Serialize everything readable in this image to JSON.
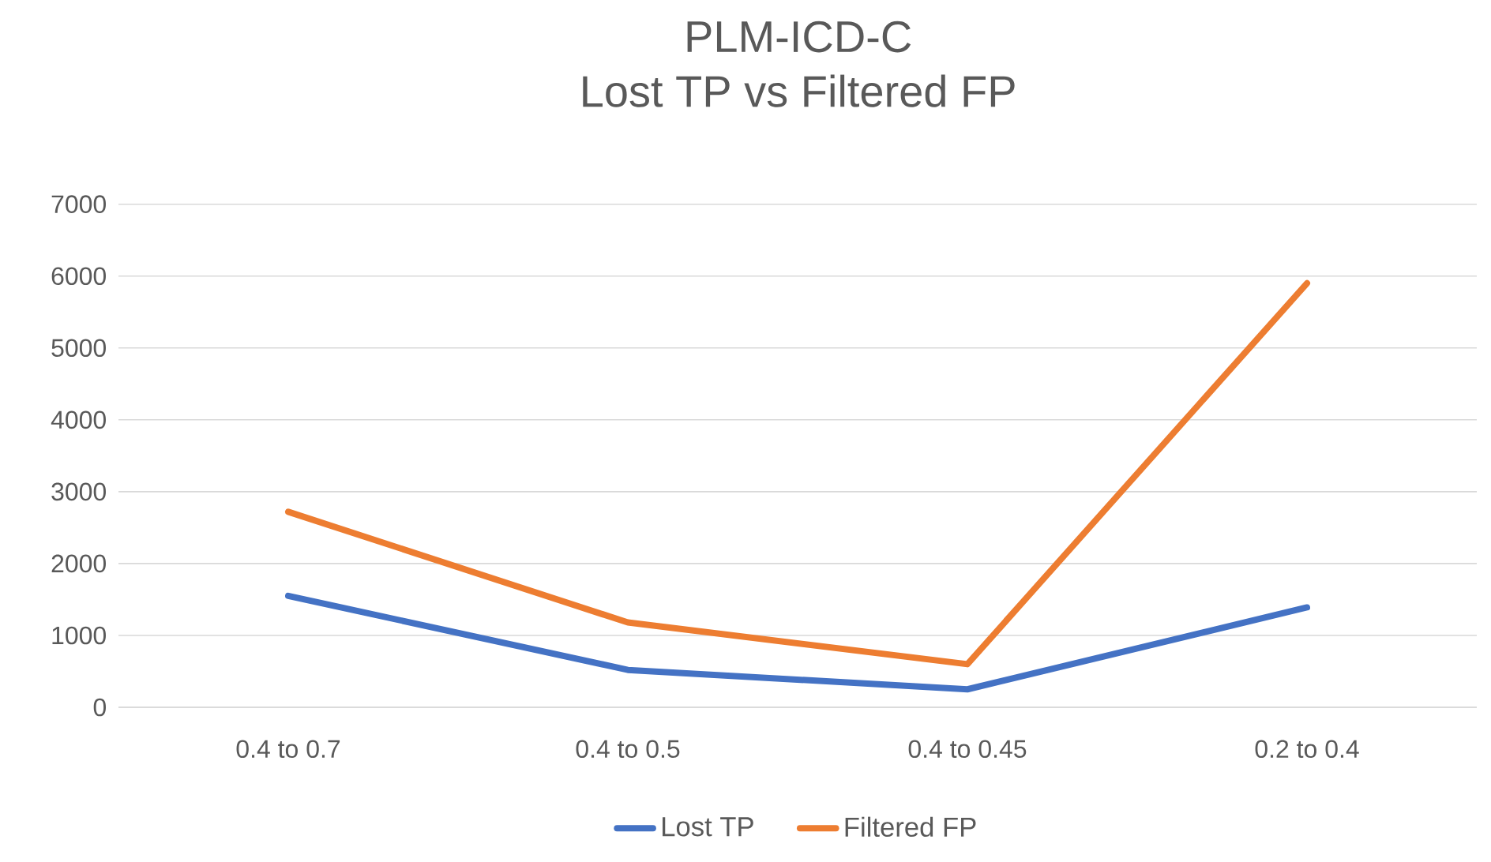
{
  "chart_data": {
    "type": "line",
    "title": "PLM-ICD-C",
    "subtitle": "Lost TP vs Filtered FP",
    "categories": [
      "0.4 to 0.7",
      "0.4 to 0.5",
      "0.4 to 0.45",
      "0.2 to 0.4"
    ],
    "series": [
      {
        "name": "Lost TP",
        "color": "#4472c4",
        "values": [
          1550,
          520,
          250,
          1390
        ]
      },
      {
        "name": "Filtered FP",
        "color": "#ed7d31",
        "values": [
          2720,
          1180,
          600,
          5900
        ]
      }
    ],
    "ylim": [
      0,
      7000
    ],
    "yticks": [
      0,
      1000,
      2000,
      3000,
      4000,
      5000,
      6000,
      7000
    ],
    "grid": "y",
    "legend": "bottom"
  }
}
